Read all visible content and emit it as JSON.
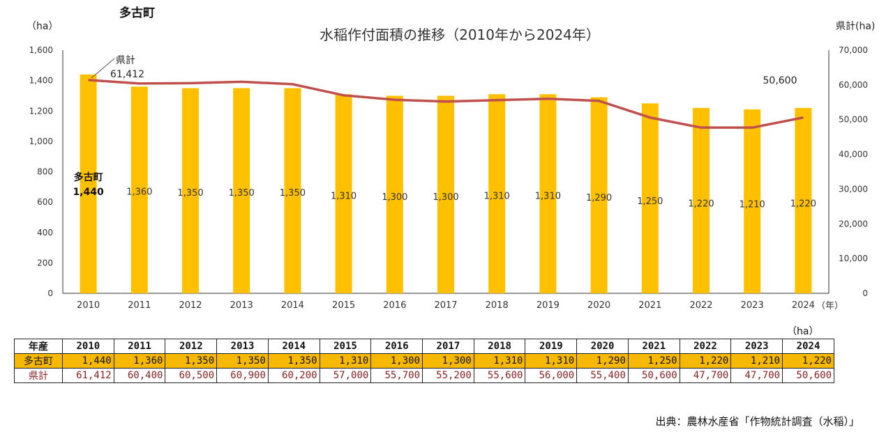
{
  "town_title": "多古町",
  "chart_data": {
    "type": "bar",
    "title": "水稲作付面積の推移（2010年から2024年）",
    "categories": [
      "2010",
      "2011",
      "2012",
      "2013",
      "2014",
      "2015",
      "2016",
      "2017",
      "2018",
      "2019",
      "2020",
      "2021",
      "2022",
      "2023",
      "2024"
    ],
    "series": [
      {
        "name": "多古町",
        "type": "bar",
        "axis": "left",
        "color": "#FFC000",
        "values": [
          1440,
          1360,
          1350,
          1350,
          1350,
          1310,
          1300,
          1300,
          1310,
          1310,
          1290,
          1250,
          1220,
          1210,
          1220
        ],
        "labels": [
          "1,440",
          "1,360",
          "1,350",
          "1,350",
          "1,350",
          "1,310",
          "1,300",
          "1,300",
          "1,310",
          "1,310",
          "1,290",
          "1,250",
          "1,220",
          "1,210",
          "1,220"
        ]
      },
      {
        "name": "県計",
        "type": "line",
        "axis": "right",
        "color": "#C0504D",
        "values": [
          61412,
          60400,
          60500,
          60900,
          60200,
          57000,
          55700,
          55200,
          55600,
          56000,
          55400,
          50600,
          47700,
          47700,
          50600
        ]
      }
    ],
    "y_left": {
      "label": "（ha）",
      "range": [
        0,
        1600
      ],
      "ticks": [
        "0",
        "200",
        "400",
        "600",
        "800",
        "1,000",
        "1,200",
        "1,400",
        "1,600"
      ]
    },
    "y_right": {
      "label": "県計(ha)",
      "range": [
        0,
        70000
      ],
      "ticks": [
        "0",
        "10,000",
        "20,000",
        "30,000",
        "40,000",
        "50,000",
        "60,000",
        "70,000"
      ]
    },
    "x_unit": "（年）",
    "annotations": {
      "bar_series_label": "多古町",
      "bar_first_value": "1,440",
      "line_series_label": "県計",
      "line_first_value": "61,412",
      "line_last_value": "50,600"
    }
  },
  "table": {
    "unit": "（ha）",
    "header_label": "年産",
    "years": [
      "2010",
      "2011",
      "2012",
      "2013",
      "2014",
      "2015",
      "2016",
      "2017",
      "2018",
      "2019",
      "2020",
      "2021",
      "2022",
      "2023",
      "2024"
    ],
    "rows": [
      {
        "label": "多古町",
        "values": [
          "1,440",
          "1,360",
          "1,350",
          "1,350",
          "1,350",
          "1,310",
          "1,300",
          "1,300",
          "1,310",
          "1,310",
          "1,290",
          "1,250",
          "1,220",
          "1,210",
          "1,220"
        ]
      },
      {
        "label": "県計",
        "values": [
          "61,412",
          "60,400",
          "60,500",
          "60,900",
          "60,200",
          "57,000",
          "55,700",
          "55,200",
          "55,600",
          "56,000",
          "55,400",
          "50,600",
          "47,700",
          "47,700",
          "50,600"
        ]
      }
    ]
  },
  "source": "出典：農林水産省「作物統計調査（水稲）」"
}
